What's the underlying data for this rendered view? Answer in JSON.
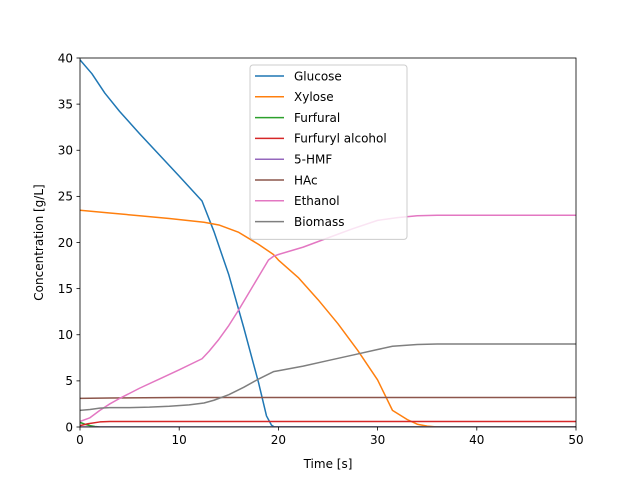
{
  "chart_data": {
    "type": "line",
    "title": "",
    "xlabel": "Time [s]",
    "ylabel": "Concentration [g/L]",
    "xlim": [
      0,
      50
    ],
    "ylim": [
      0,
      40
    ],
    "xticks": [
      "0",
      "10",
      "20",
      "30",
      "40",
      "50"
    ],
    "yticks": [
      "0",
      "5",
      "10",
      "15",
      "20",
      "25",
      "30",
      "35",
      "40"
    ],
    "grid": false,
    "legend_position": "upper center",
    "series": [
      {
        "name": "Glucose",
        "color": "#1f77b4",
        "x": [
          0,
          1.2,
          2.5,
          4,
          6,
          8,
          10,
          12.3,
          13.5,
          15,
          16.5,
          18,
          18.8,
          19.3,
          19.6,
          20,
          30,
          40,
          50
        ],
        "y": [
          39.8,
          38.3,
          36.2,
          34.2,
          31.8,
          29.5,
          27.2,
          24.5,
          21.2,
          16.5,
          10.8,
          4.8,
          1.2,
          0.2,
          0,
          0,
          0,
          0,
          0
        ]
      },
      {
        "name": "Xylose",
        "color": "#ff7f0e",
        "x": [
          0,
          3,
          6,
          9,
          12.5,
          14,
          16,
          18,
          19.5,
          20,
          22,
          24,
          26,
          28,
          30,
          31.5,
          33,
          34,
          35,
          36,
          40,
          50
        ],
        "y": [
          23.5,
          23.2,
          22.9,
          22.6,
          22.2,
          21.9,
          21.1,
          19.8,
          18.7,
          18.1,
          16.2,
          13.8,
          11.2,
          8.3,
          5.1,
          1.8,
          0.8,
          0.3,
          0.1,
          0,
          0,
          0
        ]
      },
      {
        "name": "Furfural",
        "color": "#2ca02c",
        "x": [
          0,
          0.5,
          1,
          1.5,
          2,
          3,
          50
        ],
        "y": [
          0.5,
          0.3,
          0.15,
          0.05,
          0,
          0,
          0
        ]
      },
      {
        "name": "Furfuryl alcohol",
        "color": "#d62728",
        "x": [
          0,
          0.8,
          2,
          3,
          5,
          50
        ],
        "y": [
          0.15,
          0.35,
          0.55,
          0.6,
          0.6,
          0.6
        ]
      },
      {
        "name": "5-HMF",
        "color": "#9467bd",
        "x": [
          0,
          50
        ],
        "y": [
          0,
          0
        ]
      },
      {
        "name": "HAc",
        "color": "#8c564b",
        "x": [
          0,
          3,
          10,
          20,
          50
        ],
        "y": [
          3.1,
          3.15,
          3.2,
          3.2,
          3.2
        ]
      },
      {
        "name": "Ethanol",
        "color": "#e377c2",
        "x": [
          0,
          1,
          2,
          3,
          4,
          6,
          8,
          10,
          12.3,
          13,
          14,
          15,
          16,
          17,
          18,
          19,
          19.5,
          20,
          22.5,
          25,
          27.5,
          30,
          32,
          34,
          36,
          40,
          50
        ],
        "y": [
          0.6,
          1.0,
          1.8,
          2.5,
          3.1,
          4.2,
          5.2,
          6.2,
          7.4,
          8.2,
          9.5,
          11,
          12.7,
          14.5,
          16.3,
          18.1,
          18.5,
          18.7,
          19.5,
          20.5,
          21.5,
          22.4,
          22.7,
          22.9,
          22.95,
          22.95,
          22.95
        ]
      },
      {
        "name": "Biomass",
        "color": "#7f7f7f",
        "x": [
          0,
          1,
          2,
          3,
          5,
          7,
          9,
          11,
          12.5,
          13.5,
          15,
          16.5,
          18,
          19.5,
          20,
          22.5,
          25,
          27.5,
          30,
          31.5,
          34,
          36,
          40,
          50
        ],
        "y": [
          1.8,
          1.9,
          2.05,
          2.1,
          2.1,
          2.15,
          2.25,
          2.4,
          2.6,
          2.9,
          3.5,
          4.3,
          5.2,
          6.0,
          6.1,
          6.6,
          7.2,
          7.8,
          8.4,
          8.75,
          8.95,
          9.0,
          9.0,
          9.0
        ]
      }
    ]
  }
}
